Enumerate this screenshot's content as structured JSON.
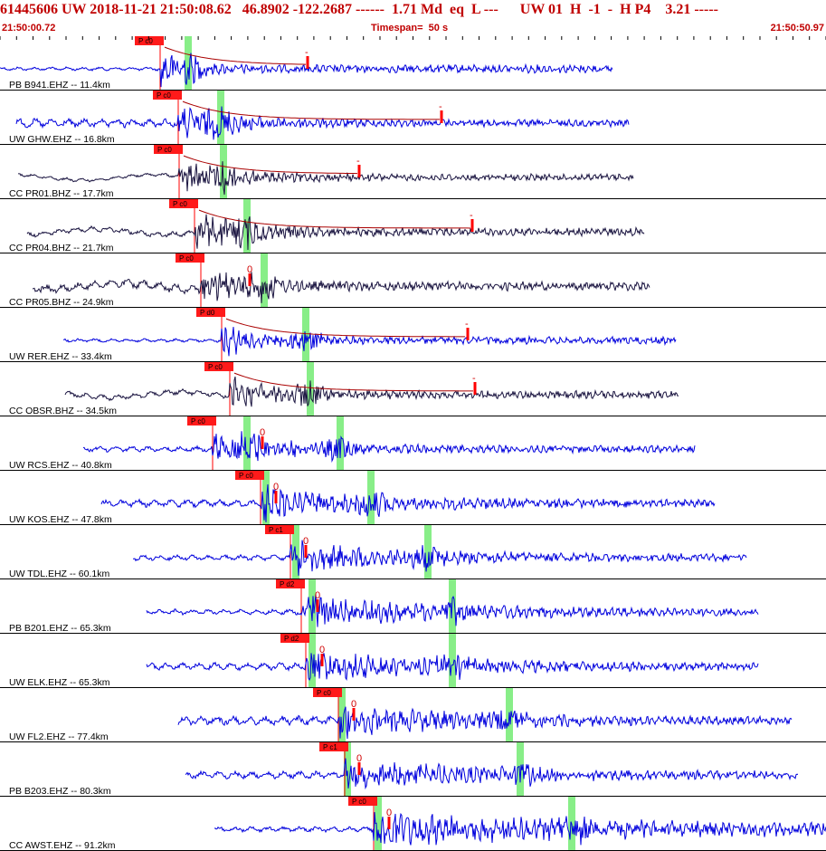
{
  "header": {
    "title": "61445606 UW 2018-11-21 21:50:08.62   46.8902 -122.2687 ------  1.71 Md  eq  L ---      UW 01  H  -1  -  H P4    3.21 -----",
    "start_time": "21:50:00.72",
    "timespan": "Timespan=  50 s",
    "end_time": "21:50:50.97"
  },
  "colors": {
    "trace_blue": "#0000dd",
    "trace_dark": "#1a1440",
    "pick": "#ff0000",
    "window": "#88ee88",
    "text": "#c00000"
  },
  "traces": [
    {
      "label": "PB B941.EHZ -- 11.4km",
      "color": "blue",
      "start": 0,
      "end": 677,
      "pick_x": 177,
      "pick_label": "P c0",
      "greens": [
        208
      ],
      "amp": 16,
      "noise": 2,
      "decay": 0.012,
      "s_mark": 340,
      "s_label": "-",
      "curve": true
    },
    {
      "label": "UW GHW.EHZ -- 16.8km",
      "color": "blue",
      "start": 18,
      "end": 695,
      "pick_x": 197,
      "pick_label": "P c0",
      "greens": [
        244
      ],
      "amp": 14,
      "noise": 5,
      "decay": 0.005,
      "s_mark": 488,
      "s_label": "-",
      "curve": true
    },
    {
      "label": "CC PR01.BHZ -- 17.7km",
      "color": "dark",
      "start": 20,
      "end": 700,
      "pick_x": 198,
      "pick_label": "P c0",
      "greens": [
        247
      ],
      "amp": 14,
      "noise": 2,
      "decay": 0.006,
      "s_mark": 397,
      "s_label": "-",
      "curve": true
    },
    {
      "label": "CC PR04.BHZ -- 21.7km",
      "color": "dark",
      "start": 30,
      "end": 712,
      "pick_x": 215,
      "pick_label": "P c0",
      "greens": [
        273
      ],
      "amp": 16,
      "noise": 3,
      "decay": 0.006,
      "s_mark": 522,
      "s_label": "-",
      "curve": true
    },
    {
      "label": "CC PR05.BHZ -- 24.9km",
      "color": "dark",
      "start": 36,
      "end": 718,
      "pick_x": 222,
      "pick_label": "P c0",
      "greens": [
        292
      ],
      "amp": 18,
      "noise": 5,
      "decay": 0.008,
      "s_mark": 276,
      "s_label": "0",
      "curve": false
    },
    {
      "label": "UW RER.EHZ -- 33.4km",
      "color": "blue",
      "start": 70,
      "end": 747,
      "pick_x": 245,
      "pick_label": "P d0",
      "greens": [
        338
      ],
      "amp": 15,
      "noise": 2,
      "decay": 0.009,
      "s_mark": 517,
      "s_label": "-",
      "curve": true
    },
    {
      "label": "CC OBSR.BHZ -- 34.5km",
      "color": "dark",
      "start": 72,
      "end": 750,
      "pick_x": 254,
      "pick_label": "P c0",
      "greens": [
        343
      ],
      "amp": 15,
      "noise": 3,
      "decay": 0.006,
      "s_mark": 525,
      "s_label": "-",
      "curve": true
    },
    {
      "label": "UW RCS.EHZ -- 40.8km",
      "color": "blue",
      "start": 92,
      "end": 768,
      "pick_x": 235,
      "pick_label": "P c0",
      "greens": [
        273,
        376
      ],
      "amp": 14,
      "noise": 3,
      "decay": 0.004,
      "s_mark": 290,
      "s_label": "0",
      "curve": false
    },
    {
      "label": "UW KOS.EHZ -- 47.8km",
      "color": "blue",
      "start": 112,
      "end": 790,
      "pick_x": 288,
      "pick_label": "P c0",
      "greens": [
        294,
        410
      ],
      "amp": 12,
      "noise": 4,
      "decay": 0.002,
      "s_mark": 305,
      "s_label": "0",
      "curve": false
    },
    {
      "label": "UW TDL.EHZ -- 60.1km",
      "color": "blue",
      "start": 147,
      "end": 825,
      "pick_x": 321,
      "pick_label": "P c1",
      "greens": [
        327,
        473
      ],
      "amp": 12,
      "noise": 3,
      "decay": 0.002,
      "s_mark": 338,
      "s_label": "0",
      "curve": false
    },
    {
      "label": "PB B201.EHZ -- 65.3km",
      "color": "blue",
      "start": 162,
      "end": 838,
      "pick_x": 333,
      "pick_label": "P d2",
      "greens": [
        345,
        500
      ],
      "amp": 13,
      "noise": 3,
      "decay": 0.002,
      "s_mark": 351,
      "s_label": "0",
      "curve": false
    },
    {
      "label": "UW ELK.EHZ -- 65.3km",
      "color": "blue",
      "start": 162,
      "end": 838,
      "pick_x": 338,
      "pick_label": "P d2",
      "greens": [
        345,
        500
      ],
      "amp": 13,
      "noise": 4,
      "decay": 0.002,
      "s_mark": 356,
      "s_label": "0",
      "curve": false
    },
    {
      "label": "UW FL2.EHZ -- 77.4km",
      "color": "blue",
      "start": 197,
      "end": 875,
      "pick_x": 374,
      "pick_label": "P c0",
      "greens": [
        378,
        563
      ],
      "amp": 13,
      "noise": 5,
      "decay": 0.002,
      "s_mark": 391,
      "s_label": "0",
      "curve": false
    },
    {
      "label": "PB B203.EHZ -- 80.3km",
      "color": "blue",
      "start": 205,
      "end": 882,
      "pick_x": 381,
      "pick_label": "P c1",
      "greens": [
        384,
        575
      ],
      "amp": 13,
      "noise": 4,
      "decay": 0.002,
      "s_mark": 397,
      "s_label": "0",
      "curve": false
    },
    {
      "label": "CC AWST.EHZ -- 91.2km",
      "color": "blue",
      "start": 237,
      "end": 913,
      "pick_x": 413,
      "pick_label": "P c0",
      "greens": [
        418,
        632
      ],
      "amp": 14,
      "noise": 3,
      "decay": 0.001,
      "s_mark": 430,
      "s_label": "0",
      "curve": false
    }
  ]
}
